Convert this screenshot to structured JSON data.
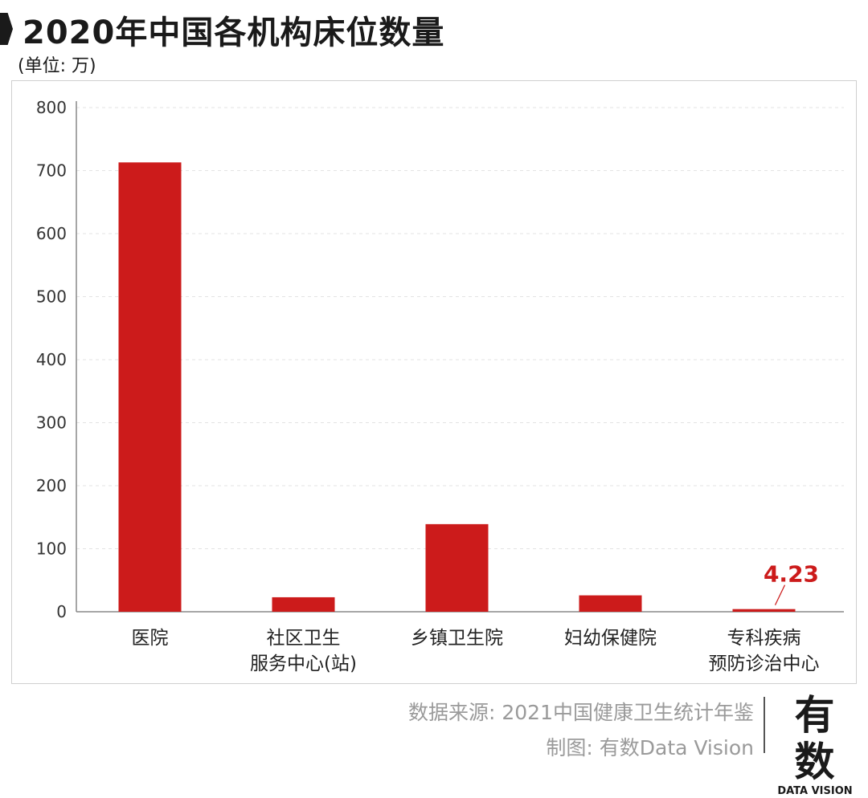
{
  "title": "2020年中国各机构床位数量",
  "unit_label": "(单位: 万)",
  "source": {
    "line1": "数据来源: 2021中国健康卫生统计年鉴",
    "line2": "制图: 有数Data Vision"
  },
  "logo": {
    "cn": "有数",
    "en": "DATA VISION"
  },
  "colors": {
    "bar": "#cc1b1b",
    "axis": "#888888",
    "grid": "#e3e3e3",
    "label_highlight": "#cc1b1b"
  },
  "chart_data": {
    "type": "bar",
    "title": "2020年中国各机构床位数量",
    "ylabel": "(单位: 万)",
    "xlabel": "",
    "ylim": [
      0,
      800
    ],
    "yticks": [
      0,
      100,
      200,
      300,
      400,
      500,
      600,
      700,
      800
    ],
    "grid": true,
    "categories": [
      [
        "医院"
      ],
      [
        "社区卫生",
        "服务中心(站)"
      ],
      [
        "乡镇卫生院"
      ],
      [
        "妇幼保健院"
      ],
      [
        "专科疾病",
        "预防诊治中心"
      ]
    ],
    "values": [
      713,
      23,
      139,
      26,
      4.23
    ],
    "annotations": [
      {
        "category_index": 4,
        "text": "4.23"
      }
    ]
  }
}
